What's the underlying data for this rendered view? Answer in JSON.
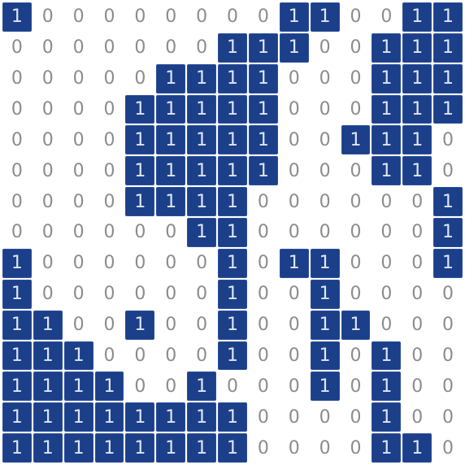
{
  "grid": {
    "rows": [
      [
        "1",
        "0",
        "0",
        "0",
        "0",
        "0",
        "0",
        "0",
        "0",
        "1",
        "1",
        "0",
        "0",
        "1",
        "1"
      ],
      [
        "0",
        "0",
        "0",
        "0",
        "0",
        "0",
        "0",
        "1",
        "1",
        "1",
        "0",
        "0",
        "1",
        "1",
        "1"
      ],
      [
        "0",
        "0",
        "0",
        "0",
        "0",
        "1",
        "1",
        "1",
        "1",
        "0",
        "0",
        "0",
        "1",
        "1",
        "1"
      ],
      [
        "0",
        "0",
        "0",
        "0",
        "1",
        "1",
        "1",
        "1",
        "1",
        "0",
        "0",
        "0",
        "1",
        "1",
        "1"
      ],
      [
        "0",
        "0",
        "0",
        "0",
        "1",
        "1",
        "1",
        "1",
        "1",
        "0",
        "0",
        "1",
        "1",
        "1",
        "0"
      ],
      [
        "0",
        "0",
        "0",
        "0",
        "1",
        "1",
        "1",
        "1",
        "1",
        "0",
        "0",
        "0",
        "1",
        "1",
        "0"
      ],
      [
        "0",
        "0",
        "0",
        "0",
        "1",
        "1",
        "1",
        "1",
        "0",
        "0",
        "0",
        "0",
        "0",
        "0",
        "1"
      ],
      [
        "0",
        "0",
        "0",
        "0",
        "0",
        "0",
        "1",
        "1",
        "0",
        "0",
        "0",
        "0",
        "0",
        "0",
        "1"
      ],
      [
        "1",
        "0",
        "0",
        "0",
        "0",
        "0",
        "0",
        "1",
        "0",
        "1",
        "1",
        "0",
        "0",
        "0",
        "1"
      ],
      [
        "1",
        "0",
        "0",
        "0",
        "0",
        "0",
        "0",
        "1",
        "0",
        "0",
        "1",
        "0",
        "0",
        "0",
        "0"
      ],
      [
        "1",
        "1",
        "0",
        "0",
        "1",
        "0",
        "0",
        "1",
        "0",
        "0",
        "1",
        "1",
        "0",
        "0",
        "0"
      ],
      [
        "1",
        "1",
        "1",
        "0",
        "0",
        "0",
        "0",
        "1",
        "0",
        "0",
        "1",
        "0",
        "1",
        "0",
        "0"
      ],
      [
        "1",
        "1",
        "1",
        "1",
        "0",
        "0",
        "1",
        "0",
        "0",
        "0",
        "1",
        "0",
        "1",
        "0",
        "0"
      ],
      [
        "1",
        "1",
        "1",
        "1",
        "1",
        "1",
        "1",
        "1",
        "0",
        "0",
        "0",
        "0",
        "1",
        "0",
        "0"
      ],
      [
        "1",
        "1",
        "1",
        "1",
        "1",
        "1",
        "1",
        "1",
        "0",
        "0",
        "0",
        "0",
        "1",
        "1",
        "0"
      ]
    ],
    "colors": {
      "filled_bg": "#1c3f8a",
      "filled_text": "#dfe6f2",
      "empty_text": "#8c8c8c",
      "background": "#ffffff"
    }
  }
}
